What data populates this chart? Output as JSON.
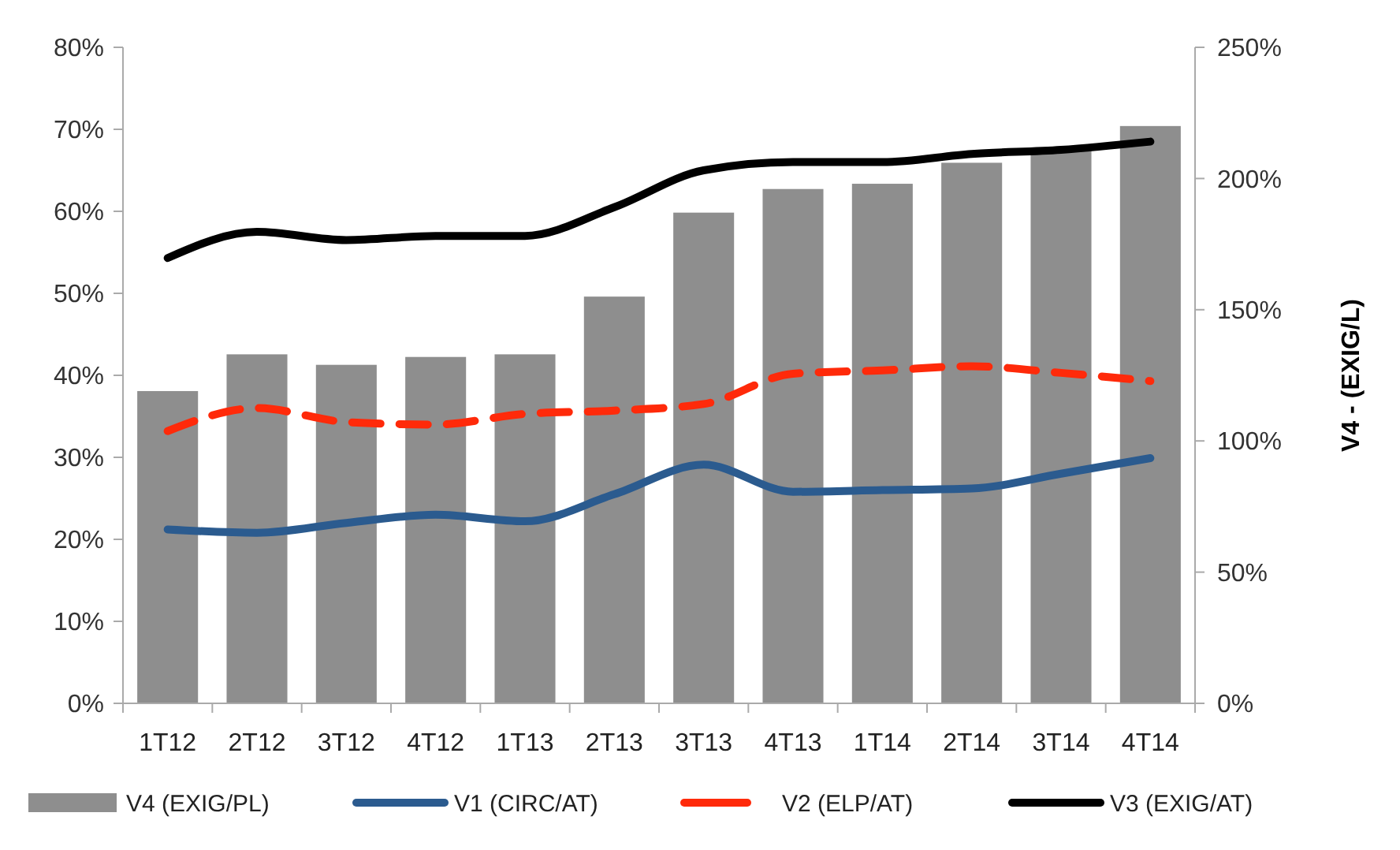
{
  "chart_data": {
    "type": "bar",
    "y2label": "V4 - (EXIG/L)",
    "categories": [
      "1T12",
      "2T12",
      "3T12",
      "4T12",
      "1T13",
      "2T13",
      "3T13",
      "4T13",
      "1T14",
      "2T14",
      "3T14",
      "4T14"
    ],
    "series": [
      {
        "name": "V4 (EXIG/PL)",
        "axis": "y2",
        "color": "#8e8e8e",
        "values": [
          119,
          133,
          129,
          132,
          133,
          155,
          187,
          196,
          198,
          206,
          211,
          220
        ]
      },
      {
        "name": "V1 (CIRC/AT)",
        "type": "line",
        "color": "#2b5b8f",
        "values": [
          21.2,
          20.8,
          22,
          23,
          22.2,
          25.5,
          29.1,
          25.8,
          26,
          26.2,
          28,
          29.9
        ]
      },
      {
        "name": "V2 (ELP/AT)",
        "type": "line",
        "line_style": "dashed",
        "color": "#ff2a0a",
        "values": [
          33.2,
          36,
          34.3,
          34,
          35.3,
          35.7,
          36.5,
          40.2,
          40.6,
          41.1,
          40.3,
          39.3
        ]
      },
      {
        "name": "V3 (EXIG/AT)",
        "type": "line",
        "color": "#000000",
        "values": [
          54.3,
          57.5,
          56.5,
          57,
          57,
          60.5,
          65,
          66,
          66,
          67,
          67.5,
          68.5
        ]
      }
    ],
    "ylim": [
      0,
      80
    ],
    "yticks": [
      {
        "value": 0,
        "label": "0%"
      },
      {
        "value": 10,
        "label": "10%"
      },
      {
        "value": 20,
        "label": "20%"
      },
      {
        "value": 30,
        "label": "30%"
      },
      {
        "value": 40,
        "label": "40%"
      },
      {
        "value": 50,
        "label": "50%"
      },
      {
        "value": 60,
        "label": "60%"
      },
      {
        "value": 70,
        "label": "70%"
      },
      {
        "value": 80,
        "label": "80%"
      }
    ],
    "y2lim": [
      0,
      250
    ],
    "y2ticks": [
      {
        "value": 0,
        "label": "0%"
      },
      {
        "value": 50,
        "label": "50%"
      },
      {
        "value": 100,
        "label": "100%"
      },
      {
        "value": 150,
        "label": "150%"
      },
      {
        "value": 200,
        "label": "200%"
      },
      {
        "value": 250,
        "label": "250%"
      }
    ],
    "legend": "bottom",
    "grid": false
  }
}
